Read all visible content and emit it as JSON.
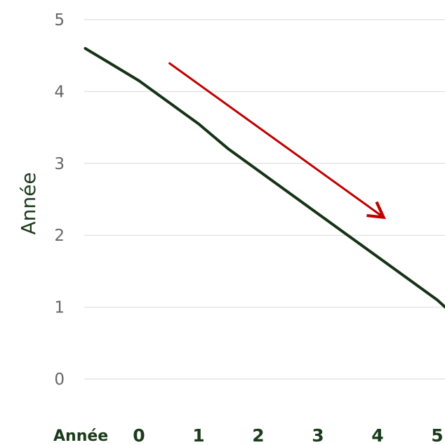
{
  "chart_data": {
    "type": "line",
    "title": "",
    "xlabel": "Année",
    "ylabel": "Année",
    "x_categories": [
      "0",
      "1",
      "2",
      "3",
      "4",
      "5"
    ],
    "y_ticks": [
      "0",
      "1",
      "2",
      "3",
      "4",
      "5"
    ],
    "ylim": [
      0,
      5
    ],
    "grid": true,
    "series": [
      {
        "color": "#163316",
        "points": [
          {
            "x": -0.9,
            "y": 4.6
          },
          {
            "x": -0.5,
            "y": 4.4
          },
          {
            "x": 0.0,
            "y": 4.15
          },
          {
            "x": 0.5,
            "y": 3.85
          },
          {
            "x": 1.0,
            "y": 3.55
          },
          {
            "x": 1.5,
            "y": 3.2
          },
          {
            "x": 2.0,
            "y": 2.9
          },
          {
            "x": 2.5,
            "y": 2.6
          },
          {
            "x": 3.0,
            "y": 2.3
          },
          {
            "x": 3.5,
            "y": 2.0
          },
          {
            "x": 4.0,
            "y": 1.7
          },
          {
            "x": 4.5,
            "y": 1.4
          },
          {
            "x": 5.0,
            "y": 1.1
          },
          {
            "x": 5.2,
            "y": 0.95
          }
        ]
      }
    ],
    "annotation": {
      "type": "arrow",
      "color": "#c00000",
      "from": {
        "x": 0.5,
        "y": 4.4
      },
      "to": {
        "x": 4.1,
        "y": 2.25
      }
    }
  }
}
